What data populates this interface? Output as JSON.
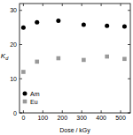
{
  "chart_data": {
    "type": "scatter",
    "x_label": "Dose / kGy",
    "y_label": "Kd",
    "series": [
      {
        "name": "Am",
        "color": "#000000",
        "marker": "circle",
        "x": [
          0,
          70,
          180,
          310,
          430,
          520
        ],
        "values": [
          25,
          26.5,
          27,
          25.8,
          25.5,
          25.3
        ]
      },
      {
        "name": "Eu",
        "color": "#999999",
        "marker": "square",
        "x": [
          0,
          70,
          180,
          310,
          430,
          520
        ],
        "values": [
          12,
          15,
          16,
          15.5,
          16.5,
          15.8
        ]
      }
    ],
    "xlim": [
      -20,
      550
    ],
    "xticks": [
      0,
      100,
      200,
      300,
      400,
      500
    ],
    "ylim": [
      0,
      32
    ],
    "yticks": [
      0,
      10,
      20,
      30
    ],
    "legend": "lower left",
    "grid": false
  }
}
